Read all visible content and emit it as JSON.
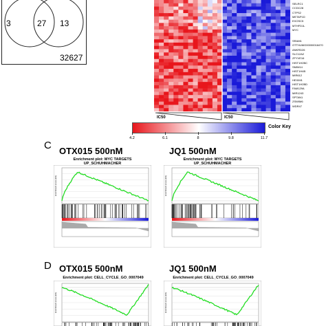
{
  "venn": {
    "left_only": "3",
    "overlap": "27",
    "right_only": "13",
    "outside": "32627"
  },
  "heatmap": {
    "genes": [
      "SELRC1",
      "CCDC28",
      "CTPS2",
      "METAP1D",
      "EXOSC5",
      "MTHFD1L",
      "MYC",
      "",
      "SRAM1",
      "OTTHUMG00000018470",
      "ANKRD26",
      "SLC12A2",
      "ZFYVE16",
      "HIST1H2BC",
      "SMIM14",
      "HIST1H4B",
      "MIR612",
      "HEXIM1",
      "HIST1H2BD",
      "FAM129A",
      "MIR1243",
      "SPTAN1",
      "ZSWIM6",
      "WDR47"
    ],
    "ic50_left": "IC50",
    "ic50_right": "IC50",
    "colorkey_label": "Color Key",
    "colorkey_ticks": [
      "4.2",
      "6.1",
      "8",
      "9.8",
      "11.7"
    ],
    "colors": {
      "low": "#e8161c",
      "mid": "#ffffff",
      "high": "#1a1ad8"
    }
  },
  "panel_c": {
    "letter": "C",
    "left_title": "OTX015 500nM",
    "right_title": "JQ1 500nM",
    "left_plot_title": [
      "Enrichment plot: MYC TARGETS",
      "UP_SCHUHMACHER"
    ],
    "right_plot_title": [
      "Enrichment plot: MYC TARGETS",
      "UP_SCHUHMACHER"
    ]
  },
  "panel_d": {
    "letter": "D",
    "left_title": "OTX015 500nM",
    "right_title": "JQ1 500nM",
    "left_plot_title": "Enrichment plot: CELL_CYCLE_GO_0007049",
    "right_plot_title": "Enrichment plot: CELL_CYCLE_GO_0007049"
  },
  "colors": {
    "enrichment_line": "#22dd22",
    "grid": "#cccccc"
  }
}
